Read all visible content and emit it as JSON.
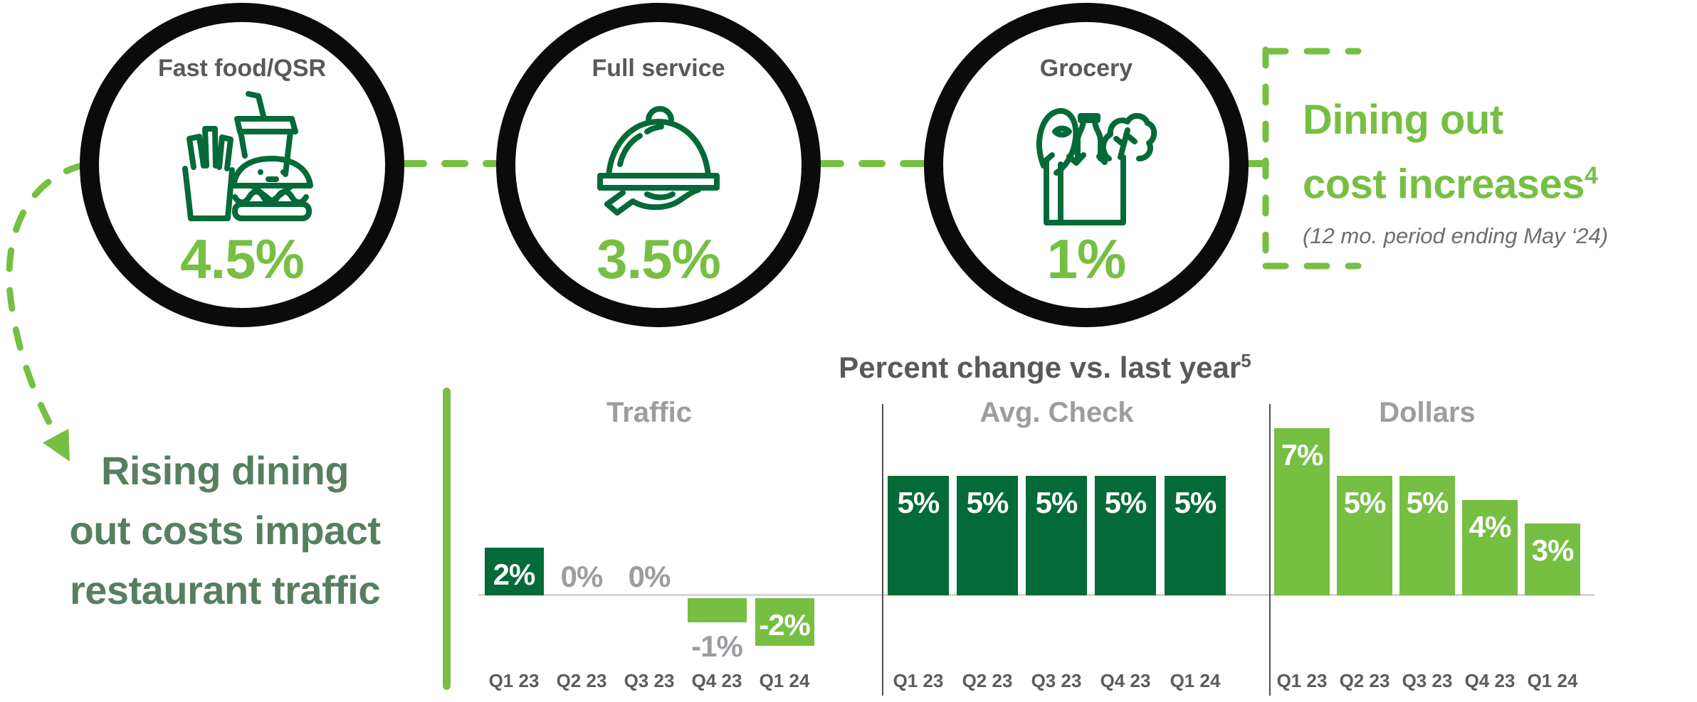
{
  "colors": {
    "light_green": "#76bf43",
    "dark_green": "#046a38",
    "headline_green": "#567f60",
    "dark_gray": "#58595b",
    "mid_gray": "#9b9da0",
    "sub_gray": "#6d6e71",
    "axis_gray": "#d6d6d6",
    "black": "#0b0b0b"
  },
  "circles": [
    {
      "label": "Fast food/QSR",
      "value": "4.5%",
      "icon": "fast-food-icon"
    },
    {
      "label": "Full service",
      "value": "3.5%",
      "icon": "cloche-hand-icon"
    },
    {
      "label": "Grocery",
      "value": "1%",
      "icon": "grocery-bag-icon"
    }
  ],
  "callout": {
    "line1": "Dining out",
    "line2": "cost increases",
    "sup": "4",
    "subtitle": "(12 mo. period ending May ‘24)"
  },
  "headline": {
    "lines": [
      "Rising dining",
      "out costs impact",
      "restaurant traffic"
    ]
  },
  "chart_data": {
    "type": "bar",
    "title": "Percent change vs. last year",
    "title_sup": "5",
    "unit": "%",
    "categories": [
      "Q1 23",
      "Q2 23",
      "Q3 23",
      "Q4 23",
      "Q1 24"
    ],
    "series": [
      {
        "name": "Traffic",
        "shade": "dark",
        "values": [
          2,
          0,
          0,
          -1,
          -2
        ]
      },
      {
        "name": "Avg. Check",
        "shade": "dark",
        "values": [
          5,
          5,
          5,
          5,
          5
        ]
      },
      {
        "name": "Dollars",
        "shade": "light",
        "values": [
          7,
          5,
          5,
          4,
          3
        ]
      }
    ],
    "negative_bar_shade": "light",
    "baseline_value": 0,
    "ylim": [
      -3,
      8
    ],
    "gridlines": false,
    "legend": "none"
  }
}
